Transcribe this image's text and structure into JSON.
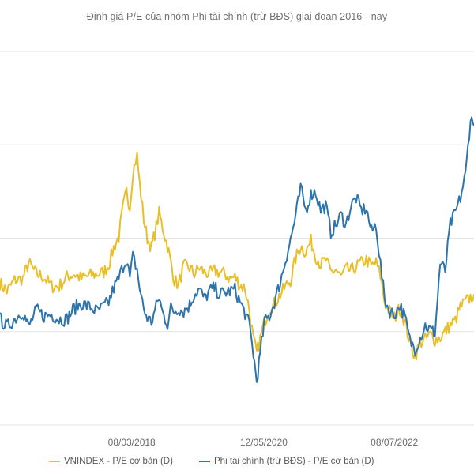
{
  "chart_data": {
    "type": "line",
    "title": "Định giá P/E của nhóm Phi tài chính (trừ BĐS) giai đoạn 2016 - nay",
    "xlabel": "",
    "ylabel": "",
    "x_range": [
      "2016-01-04",
      "2023-10-31"
    ],
    "x_ticks": [
      "08/03/2018",
      "12/05/2020",
      "08/07/2022"
    ],
    "y_ticks_labeled": false,
    "grid": "horizontal",
    "legend_position": "bottom",
    "colors": {
      "vnindex": "#E8BF2A",
      "nonfin": "#2E74AC",
      "grid": "#e3e3e3"
    },
    "series": [
      {
        "name": "VNINDEX - P/E cơ bản (D)",
        "color": "#E8BF2A",
        "points": [
          [
            "2016-01-04",
            13.1
          ],
          [
            "2016-02-15",
            12.6
          ],
          [
            "2016-04-01",
            13.3
          ],
          [
            "2016-05-20",
            13.4
          ],
          [
            "2016-06-25",
            14.4
          ],
          [
            "2016-08-10",
            13.7
          ],
          [
            "2016-09-25",
            13.5
          ],
          [
            "2016-11-10",
            12.9
          ],
          [
            "2016-12-25",
            12.9
          ],
          [
            "2017-02-10",
            13.5
          ],
          [
            "2017-03-25",
            13.7
          ],
          [
            "2017-05-10",
            13.4
          ],
          [
            "2017-06-25",
            13.6
          ],
          [
            "2017-08-10",
            13.7
          ],
          [
            "2017-09-20",
            13.8
          ],
          [
            "2017-10-20",
            14.3
          ],
          [
            "2017-11-20",
            15.4
          ],
          [
            "2017-12-20",
            16.1
          ],
          [
            "2018-01-15",
            18.0
          ],
          [
            "2018-02-05",
            19.0
          ],
          [
            "2018-02-25",
            18.0
          ],
          [
            "2018-03-15",
            20.3
          ],
          [
            "2018-04-09",
            21.3
          ],
          [
            "2018-04-25",
            19.5
          ],
          [
            "2018-05-20",
            17.2
          ],
          [
            "2018-06-10",
            16.0
          ],
          [
            "2018-07-05",
            15.4
          ],
          [
            "2018-07-25",
            16.3
          ],
          [
            "2018-08-20",
            17.6
          ],
          [
            "2018-09-10",
            16.7
          ],
          [
            "2018-10-10",
            15.5
          ],
          [
            "2018-10-30",
            14.4
          ],
          [
            "2018-11-20",
            13.3
          ],
          [
            "2018-12-15",
            13.0
          ],
          [
            "2019-01-15",
            14.2
          ],
          [
            "2019-02-20",
            14.1
          ],
          [
            "2019-03-20",
            13.7
          ],
          [
            "2019-04-20",
            14.1
          ],
          [
            "2019-05-20",
            13.8
          ],
          [
            "2019-06-20",
            13.7
          ],
          [
            "2019-07-20",
            13.9
          ],
          [
            "2019-08-20",
            13.8
          ],
          [
            "2019-09-20",
            13.7
          ],
          [
            "2019-10-20",
            13.4
          ],
          [
            "2019-11-20",
            13.5
          ],
          [
            "2019-12-20",
            13.0
          ],
          [
            "2020-01-20",
            12.8
          ],
          [
            "2020-02-15",
            11.4
          ],
          [
            "2020-03-10",
            9.5
          ],
          [
            "2020-03-30",
            8.6
          ],
          [
            "2020-04-20",
            9.5
          ],
          [
            "2020-05-15",
            10.6
          ],
          [
            "2020-06-15",
            11.5
          ],
          [
            "2020-07-15",
            11.8
          ],
          [
            "2020-08-20",
            12.4
          ],
          [
            "2020-09-20",
            12.9
          ],
          [
            "2020-10-20",
            13.3
          ],
          [
            "2020-11-20",
            14.7
          ],
          [
            "2020-12-20",
            15.5
          ],
          [
            "2021-01-20",
            15.1
          ],
          [
            "2021-02-20",
            15.8
          ],
          [
            "2021-03-20",
            14.9
          ],
          [
            "2021-04-20",
            14.3
          ],
          [
            "2021-05-20",
            14.6
          ],
          [
            "2021-06-20",
            13.8
          ],
          [
            "2021-07-20",
            14.0
          ],
          [
            "2021-08-20",
            13.5
          ],
          [
            "2021-09-20",
            14.0
          ],
          [
            "2021-10-20",
            13.9
          ],
          [
            "2021-11-20",
            14.2
          ],
          [
            "2021-12-20",
            14.4
          ],
          [
            "2022-01-20",
            14.6
          ],
          [
            "2022-02-20",
            14.2
          ],
          [
            "2022-03-20",
            14.4
          ],
          [
            "2022-04-15",
            13.6
          ],
          [
            "2022-05-10",
            11.9
          ],
          [
            "2022-06-10",
            11.3
          ],
          [
            "2022-07-08",
            10.9
          ],
          [
            "2022-08-10",
            11.5
          ],
          [
            "2022-09-10",
            10.6
          ],
          [
            "2022-10-10",
            9.3
          ],
          [
            "2022-11-10",
            8.4
          ],
          [
            "2022-12-10",
            9.3
          ],
          [
            "2023-01-10",
            9.5
          ],
          [
            "2023-02-10",
            9.8
          ],
          [
            "2023-03-10",
            9.5
          ],
          [
            "2023-04-10",
            9.6
          ],
          [
            "2023-05-10",
            10.0
          ],
          [
            "2023-06-10",
            10.4
          ],
          [
            "2023-07-10",
            10.7
          ],
          [
            "2023-08-10",
            11.6
          ],
          [
            "2023-09-10",
            11.9
          ],
          [
            "2023-10-31",
            12.4
          ]
        ]
      },
      {
        "name": "Phi tài chính (trừ BĐS) - P/E cơ bản (D)",
        "color": "#2E74AC",
        "points": [
          [
            "2016-01-04",
            10.8
          ],
          [
            "2016-02-15",
            10.3
          ],
          [
            "2016-04-01",
            10.8
          ],
          [
            "2016-05-20",
            11.3
          ],
          [
            "2016-06-25",
            10.3
          ],
          [
            "2016-08-10",
            11.4
          ],
          [
            "2016-09-25",
            11.0
          ],
          [
            "2016-11-10",
            11.1
          ],
          [
            "2016-12-25",
            10.8
          ],
          [
            "2017-02-10",
            10.8
          ],
          [
            "2017-03-25",
            11.5
          ],
          [
            "2017-05-10",
            11.8
          ],
          [
            "2017-06-25",
            11.6
          ],
          [
            "2017-08-10",
            11.3
          ],
          [
            "2017-09-20",
            11.6
          ],
          [
            "2017-10-20",
            11.9
          ],
          [
            "2017-11-20",
            12.8
          ],
          [
            "2017-12-20",
            13.4
          ],
          [
            "2018-01-15",
            14.2
          ],
          [
            "2018-02-05",
            14.7
          ],
          [
            "2018-02-25",
            13.4
          ],
          [
            "2018-03-15",
            14.8
          ],
          [
            "2018-04-09",
            14.0
          ],
          [
            "2018-04-25",
            12.8
          ],
          [
            "2018-05-20",
            11.4
          ],
          [
            "2018-06-10",
            10.9
          ],
          [
            "2018-07-05",
            10.6
          ],
          [
            "2018-07-25",
            11.3
          ],
          [
            "2018-08-20",
            12.2
          ],
          [
            "2018-09-10",
            11.2
          ],
          [
            "2018-10-10",
            10.5
          ],
          [
            "2018-10-30",
            11.5
          ],
          [
            "2018-11-20",
            11.3
          ],
          [
            "2018-12-15",
            11.5
          ],
          [
            "2019-01-15",
            11.3
          ],
          [
            "2019-02-20",
            11.7
          ],
          [
            "2019-03-20",
            12.4
          ],
          [
            "2019-04-20",
            12.7
          ],
          [
            "2019-05-20",
            12.1
          ],
          [
            "2019-06-20",
            12.6
          ],
          [
            "2019-07-20",
            12.8
          ],
          [
            "2019-08-20",
            12.4
          ],
          [
            "2019-09-20",
            12.5
          ],
          [
            "2019-10-20",
            12.6
          ],
          [
            "2019-11-20",
            12.7
          ],
          [
            "2019-12-20",
            11.9
          ],
          [
            "2020-01-20",
            11.2
          ],
          [
            "2020-02-15",
            10.4
          ],
          [
            "2020-03-10",
            8.6
          ],
          [
            "2020-03-30",
            6.8
          ],
          [
            "2020-04-20",
            8.5
          ],
          [
            "2020-05-15",
            10.6
          ],
          [
            "2020-06-15",
            11.0
          ],
          [
            "2020-07-15",
            11.9
          ],
          [
            "2020-08-20",
            13.2
          ],
          [
            "2020-09-20",
            14.6
          ],
          [
            "2020-10-20",
            15.9
          ],
          [
            "2020-11-20",
            17.4
          ],
          [
            "2020-12-20",
            19.2
          ],
          [
            "2021-01-20",
            17.8
          ],
          [
            "2021-02-20",
            18.8
          ],
          [
            "2021-03-20",
            19.0
          ],
          [
            "2021-04-20",
            17.8
          ],
          [
            "2021-05-20",
            18.1
          ],
          [
            "2021-06-20",
            16.4
          ],
          [
            "2021-07-20",
            16.8
          ],
          [
            "2021-08-20",
            17.5
          ],
          [
            "2021-09-20",
            16.9
          ],
          [
            "2021-10-20",
            18.1
          ],
          [
            "2021-11-20",
            18.6
          ],
          [
            "2021-12-20",
            17.8
          ],
          [
            "2022-01-20",
            17.9
          ],
          [
            "2022-02-20",
            16.4
          ],
          [
            "2022-03-20",
            16.9
          ],
          [
            "2022-04-15",
            14.3
          ],
          [
            "2022-05-10",
            12.1
          ],
          [
            "2022-06-10",
            11.3
          ],
          [
            "2022-07-08",
            11.1
          ],
          [
            "2022-08-10",
            11.7
          ],
          [
            "2022-09-10",
            10.9
          ],
          [
            "2022-10-10",
            9.4
          ],
          [
            "2022-11-10",
            8.9
          ],
          [
            "2022-12-10",
            9.6
          ],
          [
            "2023-01-10",
            10.4
          ],
          [
            "2023-02-10",
            10.1
          ],
          [
            "2023-03-10",
            9.9
          ],
          [
            "2023-04-10",
            14.4
          ],
          [
            "2023-05-10",
            13.9
          ],
          [
            "2023-06-10",
            16.9
          ],
          [
            "2023-07-10",
            17.6
          ],
          [
            "2023-08-10",
            18.6
          ],
          [
            "2023-09-10",
            20.1
          ],
          [
            "2023-10-10",
            23.7
          ],
          [
            "2023-10-31",
            23.2
          ]
        ]
      }
    ]
  }
}
